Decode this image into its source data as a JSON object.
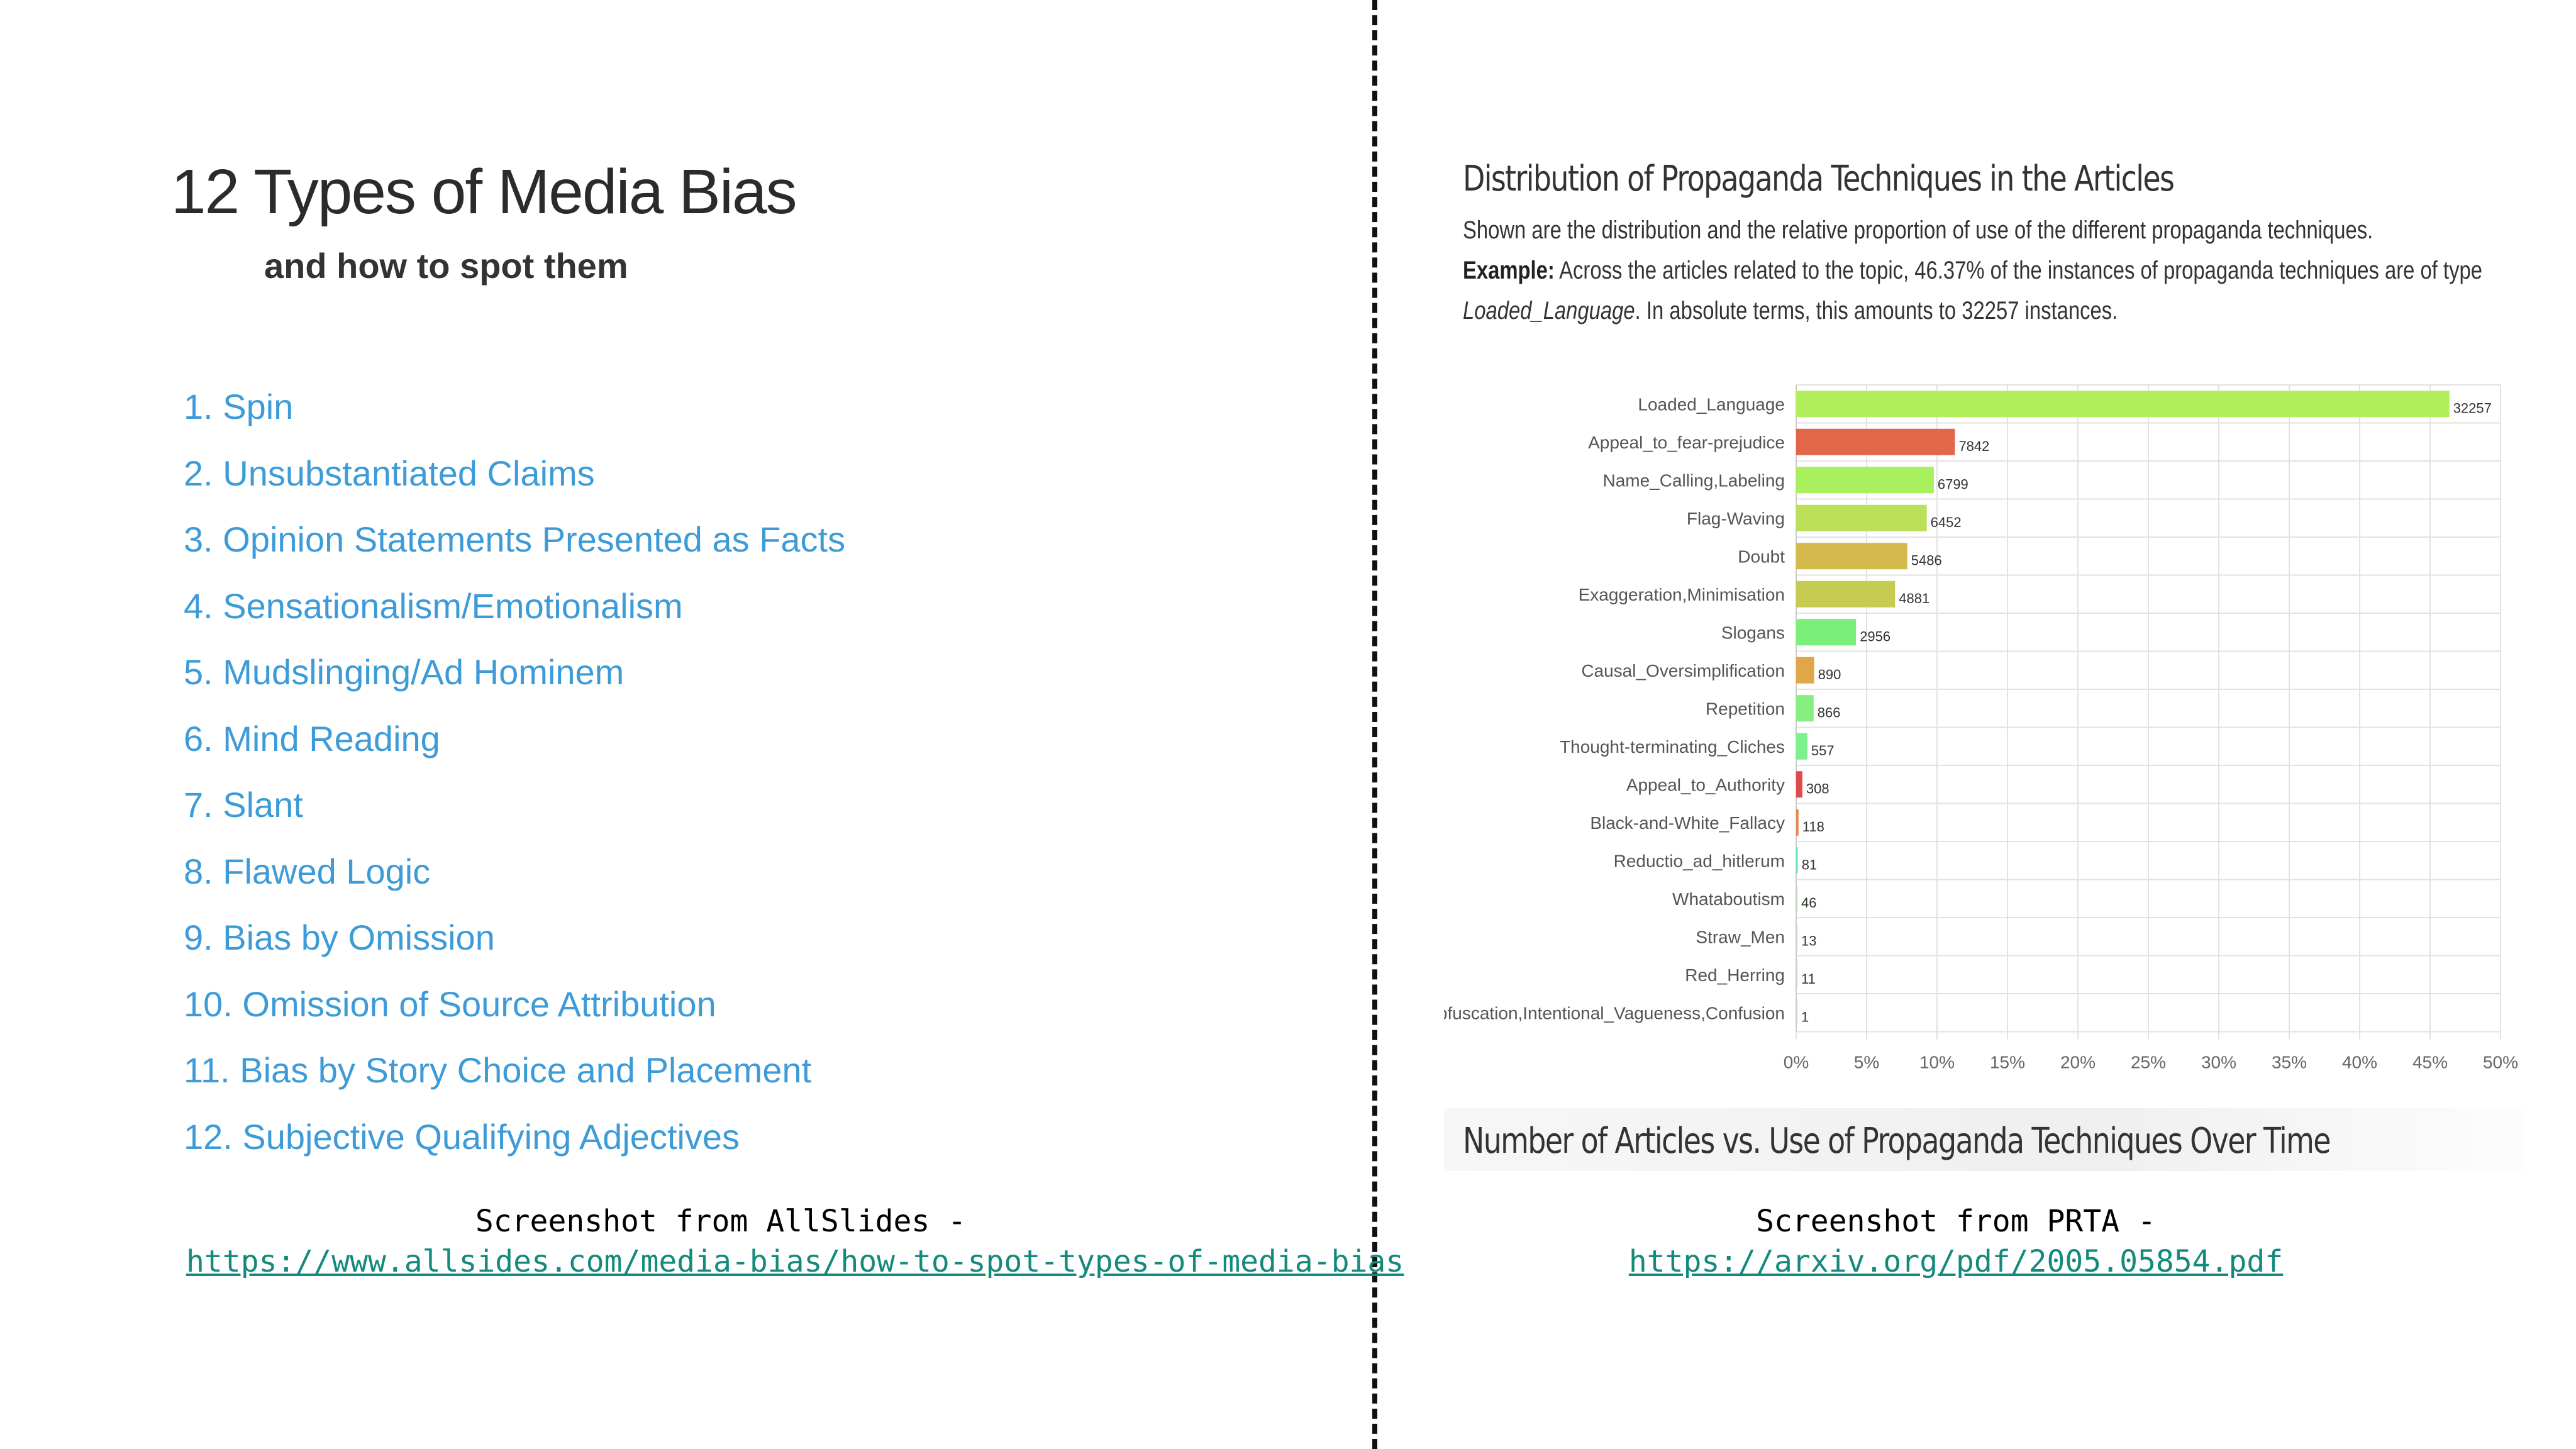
{
  "left": {
    "title": "12 Types of Media Bias",
    "subtitle": "and how to spot them",
    "items": [
      "1. Spin",
      "2. Unsubstantiated Claims",
      "3. Opinion Statements Presented as Facts",
      "4. Sensationalism/Emotionalism",
      "5. Mudslinging/Ad Hominem",
      "6. Mind Reading",
      "7. Slant",
      "8. Flawed Logic",
      "9. Bias by Omission",
      "10. Omission of Source Attribution",
      "11. Bias by Story Choice and Placement",
      "12. Subjective Qualifying Adjectives"
    ],
    "caption": "Screenshot from AllSlides -",
    "link": "https://www.allsides.com/media-bias/how-to-spot-types-of-media-bias"
  },
  "right": {
    "title": "Distribution of Propaganda Techniques in the Articles",
    "desc_line1": "Shown are the distribution and the relative proportion of use of the different propaganda techniques.",
    "example_label": "Example:",
    "desc_line2": "Across the articles related to the topic, 46.37% of the instances of propaganda techniques are of type",
    "desc_italic": "Loaded_Language",
    "desc_line3": ". In absolute terms, this amounts to 32257 instances.",
    "next_section_title": "Number of Articles vs. Use of Propaganda Techniques Over Time",
    "caption": "Screenshot from PRTA -",
    "link": "https://arxiv.org/pdf/2005.05854.pdf"
  },
  "chart_data": {
    "type": "bar",
    "orientation": "horizontal",
    "categories": [
      "Loaded_Language",
      "Appeal_to_fear-prejudice",
      "Name_Calling,Labeling",
      "Flag-Waving",
      "Doubt",
      "Exaggeration,Minimisation",
      "Slogans",
      "Causal_Oversimplification",
      "Repetition",
      "Thought-terminating_Cliches",
      "Appeal_to_Authority",
      "Black-and-White_Fallacy",
      "Reductio_ad_hitlerum",
      "Whataboutism",
      "Straw_Men",
      "Red_Herring",
      "Obfuscation,Intentional_Vagueness,Confusion"
    ],
    "values": [
      32257,
      7842,
      6799,
      6452,
      5486,
      4881,
      2956,
      890,
      866,
      557,
      308,
      118,
      81,
      46,
      13,
      11,
      1
    ],
    "value_labels": [
      "32257",
      "7842",
      "6799",
      "6452",
      "5486",
      "4881",
      "2956",
      "890",
      "866",
      "557",
      "308",
      "118",
      "81",
      "46",
      "13",
      "11",
      "1"
    ],
    "percent": [
      46.37,
      11.27,
      9.77,
      9.27,
      7.89,
      7.02,
      4.25,
      1.28,
      1.24,
      0.8,
      0.44,
      0.17,
      0.12,
      0.07,
      0.02,
      0.02,
      0.0
    ],
    "colors": [
      "#b3ef5c",
      "#e2664a",
      "#a8f05e",
      "#bde05a",
      "#d4b94c",
      "#c6cc52",
      "#7cef7a",
      "#e0a648",
      "#86ee7e",
      "#7ef08e",
      "#e04a4a",
      "#e48a58",
      "#6fe8b8",
      "#c0d8c0",
      "#d0d0d0",
      "#d0d0d0",
      "#d0d0d0"
    ],
    "xticks": [
      "0%",
      "5%",
      "10%",
      "15%",
      "20%",
      "25%",
      "30%",
      "35%",
      "40%",
      "45%",
      "50%"
    ],
    "xlim": [
      0,
      50
    ],
    "grid": true
  }
}
